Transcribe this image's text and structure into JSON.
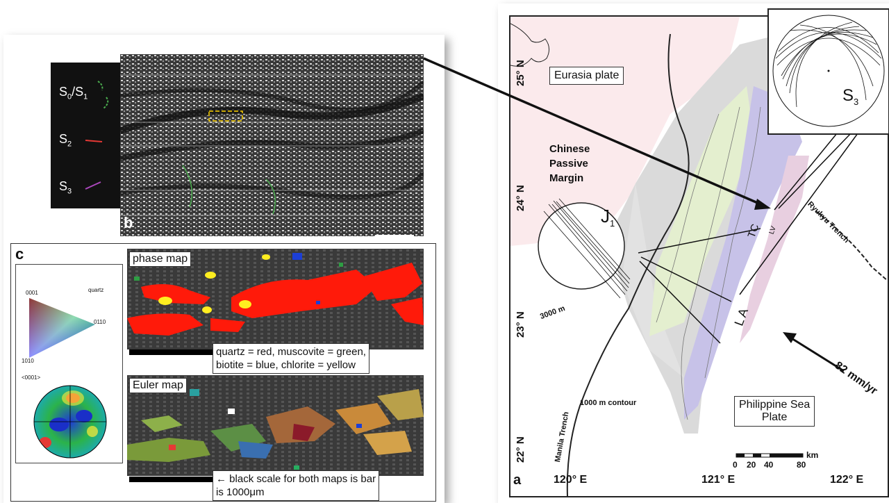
{
  "left_figure": {
    "legend": {
      "s0s1": {
        "main": "S",
        "sub1": "0",
        "sep": "/S",
        "sub2": "1"
      },
      "s2": {
        "main": "S",
        "sub": "2"
      },
      "s3": {
        "main": "S",
        "sub": "3"
      }
    },
    "panel_b_letter": "b",
    "panel_c_letter": "c",
    "ipf_legend": {
      "top_label": "0001",
      "right_label": "0110",
      "bottom_label": "1010",
      "mineral": "quartz",
      "pole_label": "<0001>"
    },
    "phase_map": {
      "label": "phase map",
      "caption_line1": "quartz = red, muscovite = green,",
      "caption_line2": "biotite = blue, chlorite = yellow"
    },
    "euler_map": {
      "label": "Euler map",
      "caption_line1": "black scale for both maps is bar",
      "caption_line2": "is 1000μm"
    }
  },
  "right_figure": {
    "eurasia": "Eurasia plate",
    "chinese_margin": [
      "Chinese",
      "Passive",
      "Margin"
    ],
    "philippine": [
      "Philippine Sea",
      "Plate"
    ],
    "j1": {
      "main": "J",
      "sub": "1"
    },
    "s3": {
      "main": "S",
      "sub": "3"
    },
    "labels": {
      "tc": "TC",
      "lv": "LV",
      "la": "L A",
      "ryukyu": "Ryukyu Trench",
      "manila": "Manila Trench",
      "contour_3000": "3000 m",
      "contour_1000": "1000 m contour",
      "velocity": "82 mm/yr",
      "panel_letter": "a"
    },
    "latitudes": [
      "25° N",
      "24° N",
      "23° N",
      "22° N"
    ],
    "longitudes": [
      "120° E",
      "121° E",
      "122° E"
    ],
    "scale": {
      "ticks": [
        "0",
        "20",
        "40",
        "80"
      ],
      "unit": "km"
    }
  },
  "colors": {
    "eurasia_fill": "#fbeaec",
    "ocean": "#ffffff",
    "slope_green": "#e4efcf",
    "central_purple": "#c7c2e8",
    "coastal_pink": "#e8cfe0",
    "shelf_gray": "#d4d4d4",
    "quartz_red": "#ff1a0a",
    "chlorite_yellow": "#ffee20"
  }
}
